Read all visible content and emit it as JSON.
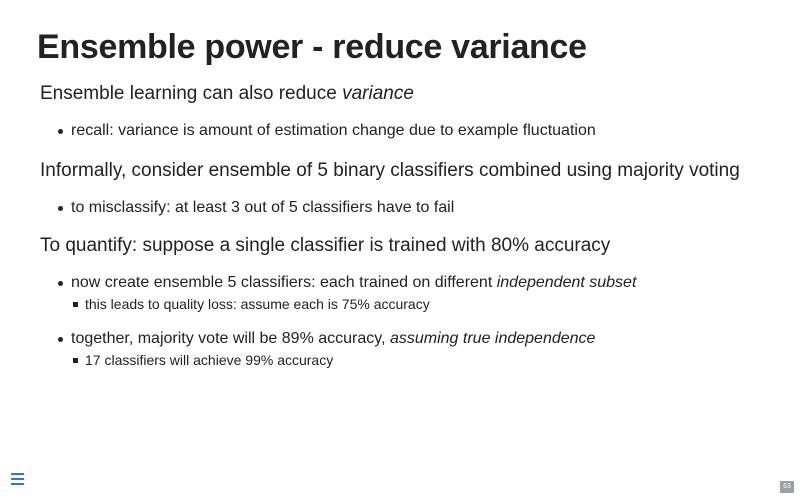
{
  "title": "Ensemble power - reduce variance",
  "p1": {
    "text": "Ensemble learning can also reduce ",
    "em": "variance"
  },
  "b1": {
    "text": "recall: variance is amount of estimation change due to example fluctuation"
  },
  "p2": {
    "text": "Informally, consider ensemble of 5 binary classifiers combined using majority voting"
  },
  "b2": {
    "text": "to misclassify: at least 3 out of 5 classifiers have to fail"
  },
  "p3": {
    "text": "To quantify: suppose a single classifier is trained with 80% accuracy"
  },
  "b3": {
    "text": "now create ensemble 5 classifiers: each trained on different ",
    "em": "independent subset",
    "sub": "this leads to quality loss: assume each is 75% accuracy"
  },
  "b4": {
    "text": "together, majority vote will be 89% accuracy, ",
    "em": "assuming true independence",
    "sub": "17 classifiers will achieve 99% accuracy"
  },
  "footer": {
    "page_number": "63",
    "menu_icon": "hamburger-menu-icon",
    "accent_color": "#2a76dd"
  }
}
